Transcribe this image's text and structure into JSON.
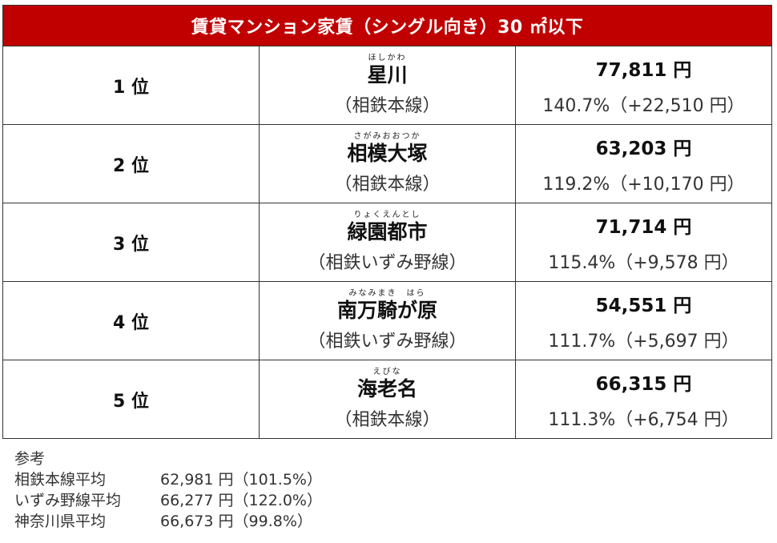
{
  "title": "賃貸マンション家賃（シングル向き）30 ㎡以下",
  "rows": [
    {
      "rank": "1 位",
      "furigana": "ほしかわ",
      "station": "星川",
      "line": "（相鉄本線）",
      "rent": "77,811 円",
      "ratio": "140.7%（+22,510 円）"
    },
    {
      "rank": "2 位",
      "furigana": "さがみおおつか",
      "station": "相模大塚",
      "line": "（相鉄本線）",
      "rent": "63,203 円",
      "ratio": "119.2%（+10,170 円）"
    },
    {
      "rank": "3 位",
      "furigana": "りょくえんとし",
      "station": "緑園都市",
      "line": "（相鉄いずみ野線）",
      "rent": "71,714 円",
      "ratio": "115.4%（+9,578 円）"
    },
    {
      "rank": "4 位",
      "furigana": "みなみまき　はら",
      "station": "南万騎が原",
      "line": "（相鉄いずみ野線）",
      "rent": "54,551 円",
      "ratio": "111.7%（+5,697 円）"
    },
    {
      "rank": "5 位",
      "furigana": "えびな",
      "station": "海老名",
      "line": "（相鉄本線）",
      "rent": "66,315 円",
      "ratio": "111.3%（+6,754 円）"
    }
  ],
  "reference": {
    "heading": "参考",
    "items": [
      {
        "label": "相鉄本線平均",
        "value": "62,981 円（101.5%）"
      },
      {
        "label": "いずみ野線平均",
        "value": "66,277 円（122.0%）"
      },
      {
        "label": "神奈川県平均",
        "value": "66,673 円（99.8%）"
      }
    ]
  },
  "colors": {
    "header_background": "#c00000",
    "header_text": "#ffffff",
    "border": "#333333"
  }
}
